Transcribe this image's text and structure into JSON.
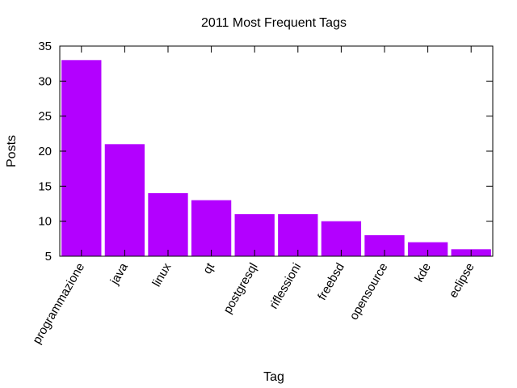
{
  "chart_data": {
    "type": "bar",
    "title": "2011 Most Frequent Tags",
    "xlabel": "Tag",
    "ylabel": "Posts",
    "categories": [
      "programmazione",
      "java",
      "linux",
      "qt",
      "postgresql",
      "riflessioni",
      "freebsd",
      "opensource",
      "kde",
      "eclipse"
    ],
    "values": [
      33,
      21,
      14,
      13,
      11,
      11,
      10,
      8,
      7,
      6
    ],
    "ylim": [
      5,
      35
    ],
    "yticks": [
      5,
      10,
      15,
      20,
      25,
      30,
      35
    ],
    "grid": false,
    "legend": "none",
    "bar_color": "#b300ff"
  }
}
